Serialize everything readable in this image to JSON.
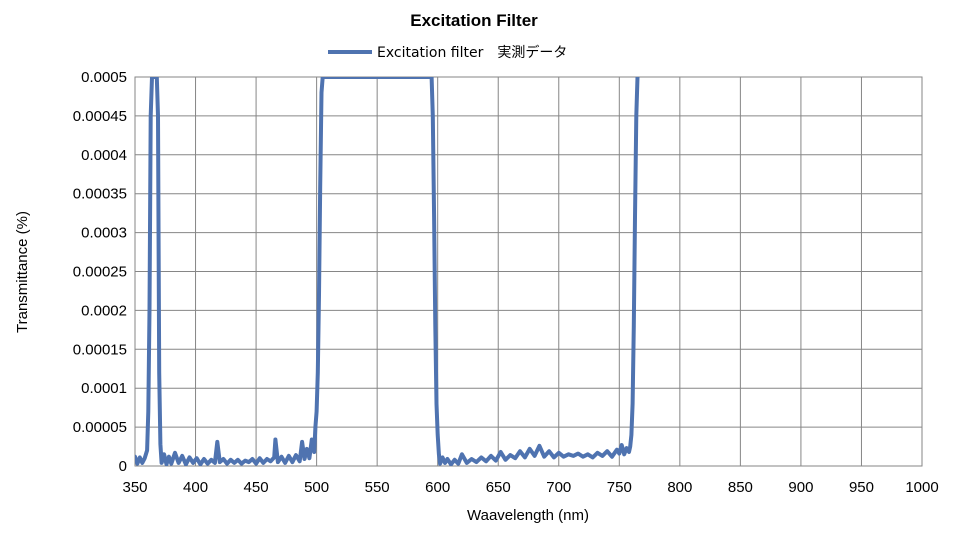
{
  "chart_data": {
    "type": "line",
    "title": "Excitation Filter",
    "xlabel": "Waavelength  (nm)",
    "ylabel": "Transmittance (%)",
    "xlim": [
      350,
      1000
    ],
    "ylim": [
      0,
      0.0005
    ],
    "x_ticks": [
      "350",
      "400",
      "450",
      "500",
      "550",
      "600",
      "650",
      "700",
      "750",
      "800",
      "850",
      "900",
      "950",
      "1000"
    ],
    "x_tick_values": [
      350,
      400,
      450,
      500,
      550,
      600,
      650,
      700,
      750,
      800,
      850,
      900,
      950,
      1000
    ],
    "y_ticks": [
      "0",
      "0.00005",
      "0.0001",
      "0.00015",
      "0.0002",
      "0.00025",
      "0.0003",
      "0.00035",
      "0.0004",
      "0.00045",
      "0.0005"
    ],
    "y_tick_values": [
      0,
      5e-05,
      0.0001,
      0.00015,
      0.0002,
      0.00025,
      0.0003,
      0.00035,
      0.0004,
      0.00045,
      0.0005
    ],
    "grid": true,
    "legend_position": "top",
    "series": [
      {
        "name": "Excitation filter　実測データ",
        "color": "#4f73b0",
        "x": [
          350,
          352,
          354,
          356,
          358,
          360,
          361,
          362,
          363,
          364,
          365,
          366,
          367,
          368,
          369,
          370,
          371,
          372,
          374,
          376,
          378,
          380,
          383,
          386,
          389,
          392,
          395,
          398,
          401,
          404,
          407,
          410,
          413,
          416,
          418,
          420,
          423,
          426,
          429,
          432,
          435,
          438,
          441,
          444,
          447,
          450,
          453,
          456,
          459,
          462,
          465,
          466,
          468,
          471,
          474,
          477,
          480,
          483,
          486,
          488,
          490,
          492,
          494,
          496,
          498,
          499,
          500,
          501,
          502,
          503,
          504,
          505,
          595,
          596,
          597,
          598,
          599,
          600,
          601,
          602,
          604,
          606,
          608,
          611,
          614,
          617,
          620,
          624,
          628,
          632,
          636,
          640,
          644,
          648,
          652,
          656,
          660,
          664,
          668,
          672,
          676,
          680,
          684,
          688,
          692,
          696,
          700,
          704,
          708,
          712,
          716,
          720,
          724,
          728,
          732,
          736,
          740,
          744,
          748,
          750,
          752,
          754,
          756,
          758,
          759,
          760,
          761,
          762,
          763,
          764,
          765
        ],
        "y": [
          1.2e-05,
          3e-06,
          1.1e-05,
          4e-06,
          1e-05,
          2e-05,
          7e-05,
          0.0002,
          0.00045,
          0.0005,
          0.0005,
          0.0005,
          0.0005,
          0.0005,
          0.00045,
          0.00012,
          2.8e-05,
          4e-06,
          1.5e-05,
          2e-06,
          1.2e-05,
          3e-06,
          1.7e-05,
          4e-06,
          1.3e-05,
          2e-06,
          1.1e-05,
          4e-06,
          1e-05,
          2e-06,
          9e-06,
          3e-06,
          8e-06,
          4e-06,
          3.1e-05,
          5e-06,
          9e-06,
          3e-06,
          8e-06,
          4e-06,
          8e-06,
          3e-06,
          7e-06,
          5e-06,
          9e-06,
          3e-06,
          1e-05,
          4e-06,
          9e-06,
          6e-06,
          1.1e-05,
          3.4e-05,
          5e-06,
          1.2e-05,
          4e-06,
          1.3e-05,
          5e-06,
          1.4e-05,
          6e-06,
          3.1e-05,
          9e-06,
          2.2e-05,
          1e-05,
          3.4e-05,
          1.8e-05,
          5e-05,
          7e-05,
          0.00012,
          0.00022,
          0.00036,
          0.00048,
          0.0005,
          0.0005,
          0.00045,
          0.00032,
          0.00018,
          8e-05,
          4e-05,
          1.5e-05,
          3e-06,
          1.1e-05,
          4e-06,
          9e-06,
          2e-06,
          8e-06,
          3e-06,
          1.5e-05,
          4e-06,
          9e-06,
          5e-06,
          1.1e-05,
          6e-06,
          1.3e-05,
          7e-06,
          1.8e-05,
          8e-06,
          1.4e-05,
          1e-05,
          1.9e-05,
          1.1e-05,
          2.2e-05,
          1.3e-05,
          2.6e-05,
          1.2e-05,
          1.9e-05,
          1.1e-05,
          1.7e-05,
          1.2e-05,
          1.5e-05,
          1.3e-05,
          1.6e-05,
          1.2e-05,
          1.5e-05,
          1.1e-05,
          1.7e-05,
          1.3e-05,
          1.9e-05,
          1.2e-05,
          2.1e-05,
          1.6e-05,
          2.7e-05,
          1.5e-05,
          2.3e-05,
          1.8e-05,
          2.5e-05,
          4e-05,
          8e-05,
          0.00018,
          0.00032,
          0.00045,
          0.0005
        ]
      }
    ]
  }
}
